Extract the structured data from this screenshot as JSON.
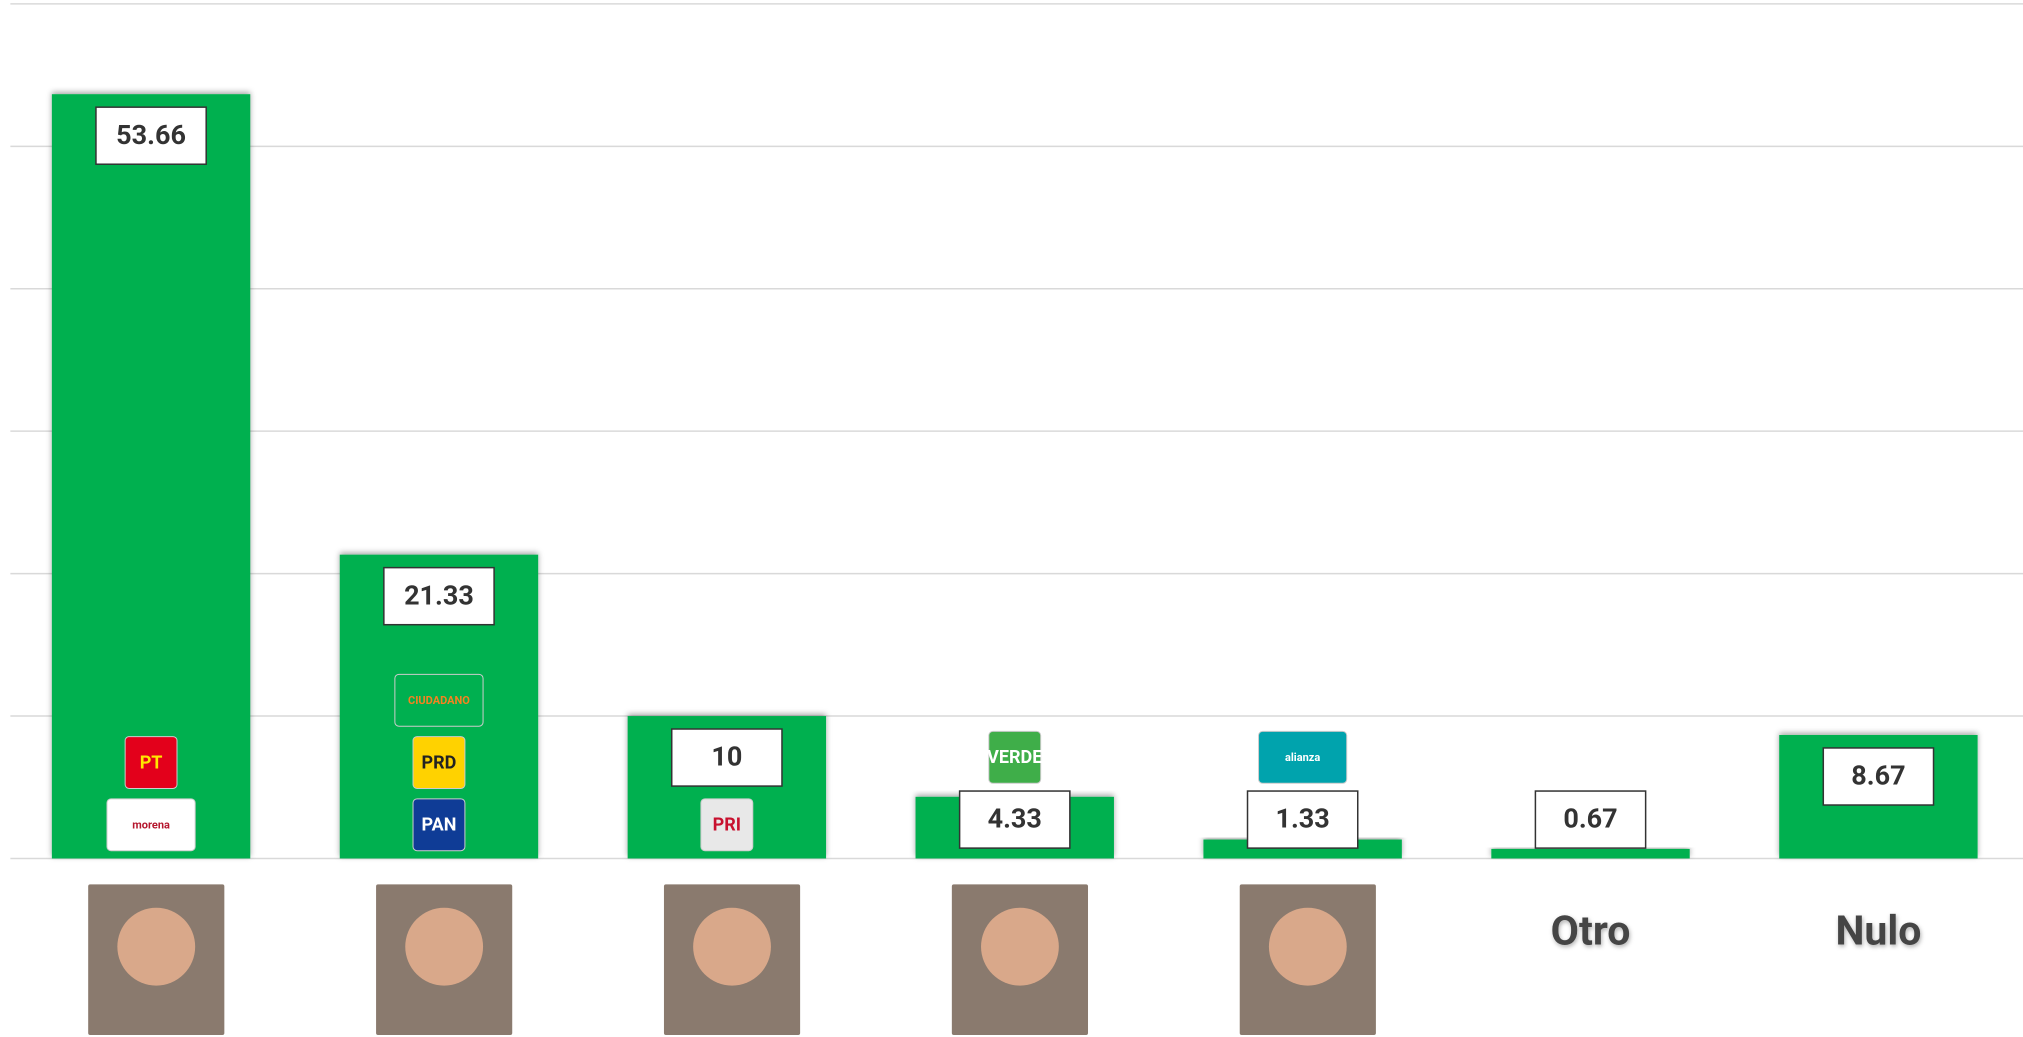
{
  "chart_data": {
    "type": "bar",
    "categories": [
      null,
      null,
      null,
      null,
      null,
      "Otro",
      "Nulo"
    ],
    "values": [
      53.66,
      21.33,
      10,
      4.33,
      1.33,
      0.67,
      8.67
    ],
    "color": "#00b050",
    "ylim": [
      0,
      60
    ],
    "yticks": [
      0,
      10,
      20,
      30,
      40,
      50,
      60
    ],
    "grid": true,
    "logos": [
      [
        {
          "label": "morena",
          "color": "#ffffff",
          "text": "#b5172e"
        },
        {
          "label": "PT",
          "color": "#e3001b",
          "text": "#ffe600"
        }
      ],
      [
        {
          "label": "PAN",
          "color": "#0f3c96",
          "text": "#ffffff"
        },
        {
          "label": "PRD",
          "color": "#ffd200",
          "text": "#222222"
        },
        {
          "label": "CIUDADANO",
          "color": "#00b050",
          "text": "#f58220"
        }
      ],
      [
        {
          "label": "PRI",
          "color": "#e8e8e8",
          "text": "#c8102e"
        }
      ],
      [
        {
          "label": "VERDE",
          "color": "#3fae49",
          "text": "#ffffff"
        }
      ],
      [
        {
          "label": "alianza",
          "color": "#00a3ad",
          "text": "#ffffff"
        }
      ],
      [],
      []
    ]
  }
}
